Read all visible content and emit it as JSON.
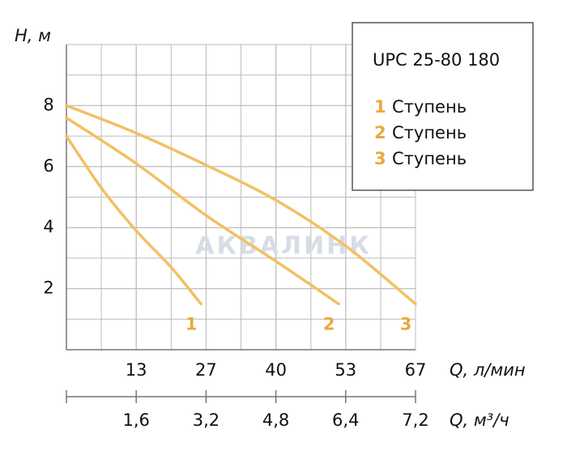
{
  "chart_data": {
    "type": "line",
    "title": "UPC 25-80 180",
    "watermark": "АКВАЛИНК",
    "y_label": "H, м",
    "x_label": "Q, л/мин",
    "x2_label": "Q, м³/ч",
    "xlim": [
      0,
      66.67
    ],
    "ylim": [
      0,
      10
    ],
    "xticks": [
      {
        "value": 13.33,
        "label": "13"
      },
      {
        "value": 26.67,
        "label": "27"
      },
      {
        "value": 40,
        "label": "40"
      },
      {
        "value": 53.33,
        "label": "53"
      },
      {
        "value": 66.67,
        "label": "67"
      }
    ],
    "x2_labels": [
      "1,6",
      "3,2",
      "4,8",
      "6,4",
      "7,2"
    ],
    "yticks": [
      2,
      4,
      6,
      8
    ],
    "grid": true,
    "series": [
      {
        "name": "1",
        "legend": "Ступень",
        "color": "#f2c064",
        "x": [
          0,
          6.67,
          13.33,
          20,
          25.7
        ],
        "values": [
          7.0,
          5.3,
          3.9,
          2.7,
          1.5
        ]
      },
      {
        "name": "2",
        "legend": "Ступень",
        "color": "#f2c064",
        "x": [
          0,
          13.33,
          26.67,
          40,
          52
        ],
        "values": [
          7.6,
          6.1,
          4.4,
          2.9,
          1.5
        ]
      },
      {
        "name": "3",
        "legend": "Ступень",
        "color": "#f2c064",
        "x": [
          0,
          13.33,
          26.67,
          40,
          53.33,
          66.67
        ],
        "values": [
          8.0,
          7.1,
          6.05,
          4.9,
          3.4,
          1.5
        ]
      }
    ]
  }
}
